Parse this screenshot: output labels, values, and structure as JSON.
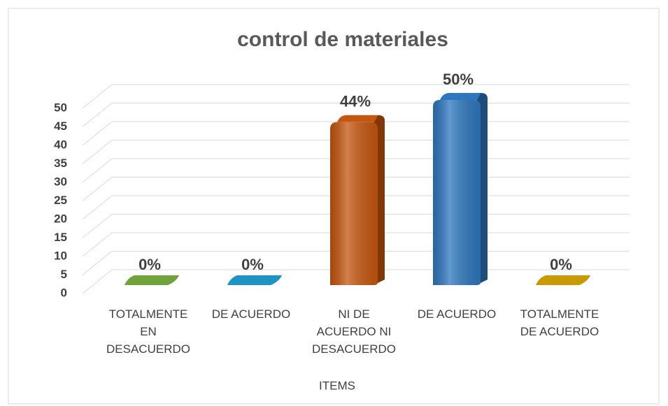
{
  "chart_data": {
    "type": "bar3d",
    "title": "control de materiales",
    "categories": [
      "TOTALMENTE EN DESACUERDO",
      "DE ACUERDO",
      "NI DE ACUERDO NI DESACUERDO",
      "DE ACUERDO",
      "TOTALMENTE DE ACUERDO"
    ],
    "values": [
      0,
      0,
      44,
      50,
      0
    ],
    "value_labels": [
      "0%",
      "0%",
      "44%",
      "50%",
      "0%"
    ],
    "colors": [
      "#70a33a",
      "#1f93c4",
      "#c5560f",
      "#2e76bd",
      "#c79a00"
    ],
    "xlabel": "ITEMS",
    "ylim": [
      0,
      50
    ],
    "yticks": [
      0,
      5,
      10,
      15,
      20,
      25,
      30,
      35,
      40,
      45,
      50
    ],
    "grid": true
  }
}
